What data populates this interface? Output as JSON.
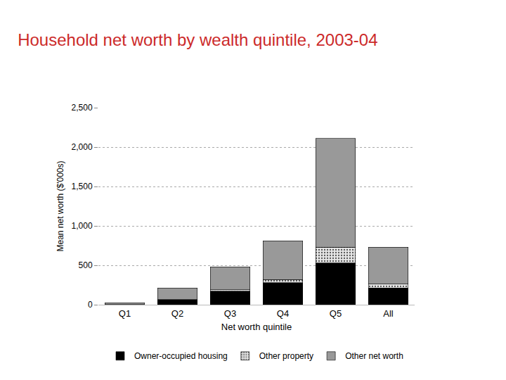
{
  "chart_data": {
    "type": "bar",
    "title": "Household net worth by wealth quintile, 2003-04",
    "x_label": "Net worth quintile",
    "y_label": "Mean net worth ($'000s)",
    "categories": [
      "Q1",
      "Q2",
      "Q3",
      "Q4",
      "Q5",
      "All"
    ],
    "series": [
      {
        "name": "Owner-occupied housing",
        "color": "#000000",
        "values": [
          3,
          60,
          170,
          280,
          530,
          210
        ]
      },
      {
        "name": "Other property",
        "color": "#e6e6e6",
        "marker": "dots",
        "values": [
          1,
          5,
          20,
          40,
          200,
          50
        ]
      },
      {
        "name": "Other net worth",
        "color": "#999999",
        "values": [
          21,
          145,
          290,
          490,
          1380,
          470
        ]
      }
    ],
    "ylim": [
      0,
      2500
    ],
    "yticks": [
      0,
      500,
      {
        "value": 1000,
        "label": "1,000"
      },
      {
        "value": 1500,
        "label": "1,500"
      },
      {
        "value": 2000,
        "label": "2,000"
      },
      {
        "value": 2500,
        "label": "2,500"
      }
    ],
    "grid": true,
    "stacked": true,
    "legend": "bottom"
  }
}
